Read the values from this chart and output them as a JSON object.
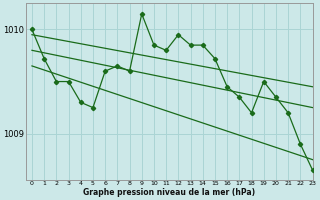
{
  "background_color": "#cce8e8",
  "grid_color": "#aad4d4",
  "line_color": "#1a6b1a",
  "title": "Graphe pression niveau de la mer (hPa)",
  "xlim": [
    -0.5,
    23
  ],
  "ylim": [
    1008.55,
    1010.25
  ],
  "yticks": [
    1009,
    1010
  ],
  "xticks": [
    0,
    1,
    2,
    3,
    4,
    5,
    6,
    7,
    8,
    9,
    10,
    11,
    12,
    13,
    14,
    15,
    16,
    17,
    18,
    19,
    20,
    21,
    22,
    23
  ],
  "series": [
    {
      "x": [
        0,
        23
      ],
      "y": [
        1009.95,
        1009.45
      ],
      "has_markers": false,
      "lw": 0.9
    },
    {
      "x": [
        0,
        23
      ],
      "y": [
        1009.8,
        1009.25
      ],
      "has_markers": false,
      "lw": 0.9
    },
    {
      "x": [
        0,
        23
      ],
      "y": [
        1009.65,
        1008.75
      ],
      "has_markers": false,
      "lw": 0.9
    },
    {
      "x": [
        0,
        1,
        2,
        3,
        4,
        5,
        6,
        7,
        8,
        9,
        10,
        11,
        12,
        13,
        14,
        15,
        16,
        17,
        18,
        19,
        20,
        21,
        22,
        23
      ],
      "y": [
        1010.0,
        1009.72,
        1009.5,
        1009.5,
        1009.3,
        1009.25,
        1009.6,
        1009.65,
        1009.6,
        1010.15,
        1009.85,
        1009.8,
        1009.95,
        1009.85,
        1009.85,
        1009.72,
        1009.45,
        1009.35,
        1009.2,
        1009.5,
        1009.35,
        1009.2,
        1008.9,
        1008.65
      ],
      "has_markers": true,
      "lw": 0.9
    }
  ]
}
